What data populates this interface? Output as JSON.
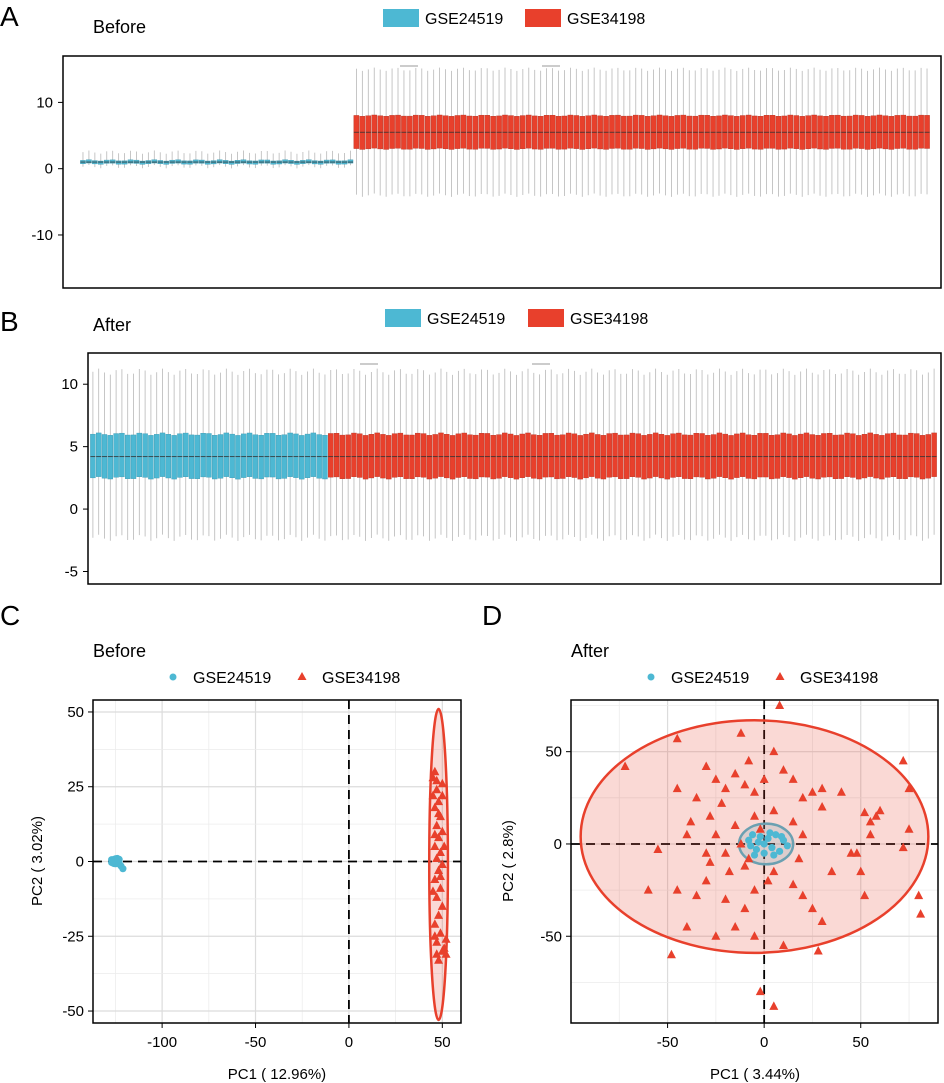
{
  "colors": {
    "GSE24519": "#4db8d3",
    "GSE34198": "#e8402c",
    "GSE24519_dark": "#3a97b0",
    "GSE34198_dark": "#b5301f"
  },
  "chart_data": [
    {
      "panel": "A",
      "title": "Before",
      "type": "boxplot",
      "legend": [
        "GSE24519",
        "GSE34198"
      ],
      "legend_position": "top",
      "ylim": [
        -18,
        17
      ],
      "yticks": [
        "10",
        "0",
        "-10"
      ],
      "series": [
        {
          "name": "GSE24519",
          "samples": 46,
          "median": 1.0,
          "q1": 0.75,
          "q3": 1.25,
          "whisker_low": 0.3,
          "whisker_high": 2.5
        },
        {
          "name": "GSE34198",
          "samples": 97,
          "median": 5.5,
          "q1": 3.0,
          "q3": 8.0,
          "whisker_low": -4.0,
          "whisker_high": 15.0
        }
      ]
    },
    {
      "panel": "B",
      "title": "After",
      "type": "boxplot",
      "legend": [
        "GSE24519",
        "GSE34198"
      ],
      "legend_position": "top",
      "ylim": [
        -6,
        12.5
      ],
      "yticks": [
        "10",
        "5",
        "0",
        "-5"
      ],
      "series": [
        {
          "name": "GSE24519",
          "samples": 41,
          "median": 4.2,
          "q1": 2.5,
          "q3": 6.0,
          "whisker_low": -2.3,
          "whisker_high": 11.0
        },
        {
          "name": "GSE34198",
          "samples": 105,
          "median": 4.2,
          "q1": 2.5,
          "q3": 6.0,
          "whisker_low": -2.3,
          "whisker_high": 11.0
        }
      ]
    },
    {
      "panel": "C",
      "title": "Before",
      "type": "scatter",
      "legend": [
        "GSE24519",
        "GSE34198"
      ],
      "legend_position": "top",
      "xlabel": "PC1 ( 12.96%)",
      "ylabel": "PC2 ( 3.02%)",
      "xlim": [
        -137,
        60
      ],
      "ylim": [
        -54,
        54
      ],
      "xticks": [
        "-100",
        "-50",
        "0",
        "50"
      ],
      "yticks": [
        "50",
        "25",
        "0",
        "-25",
        "-50"
      ],
      "series": [
        {
          "name": "GSE24519",
          "marker": "circle",
          "points": [
            [
              -127,
              0.6
            ],
            [
              -126,
              0.2
            ],
            [
              -125,
              0.9
            ],
            [
              -124,
              1.0
            ],
            [
              -125,
              -0.5
            ],
            [
              -123,
              -0.6
            ],
            [
              -122,
              -1.5
            ],
            [
              -121,
              -2.4
            ],
            [
              -126,
              0.0
            ],
            [
              -124,
              0.3
            ],
            [
              -123,
              0.7
            ],
            [
              -127,
              -0.3
            ]
          ],
          "ellipse": {
            "cx": -125,
            "cy": 0,
            "rx": 3,
            "ry": 1.5
          }
        },
        {
          "name": "GSE34198",
          "marker": "triangle",
          "points": [
            [
              46,
              30
            ],
            [
              47,
              27
            ],
            [
              45,
              22
            ],
            [
              48,
              20
            ],
            [
              46,
              18
            ],
            [
              49,
              15
            ],
            [
              47,
              12
            ],
            [
              50,
              10
            ],
            [
              48,
              8
            ],
            [
              46,
              5
            ],
            [
              49,
              3
            ],
            [
              47,
              1
            ],
            [
              50,
              -1
            ],
            [
              48,
              -3
            ],
            [
              46,
              -6
            ],
            [
              49,
              -9
            ],
            [
              47,
              -12
            ],
            [
              50,
              -15
            ],
            [
              48,
              -18
            ],
            [
              46,
              -21
            ],
            [
              49,
              -24
            ],
            [
              47,
              -27
            ],
            [
              50,
              -30
            ],
            [
              48,
              -33
            ],
            [
              51,
              -29
            ],
            [
              46,
              -25
            ],
            [
              52,
              -26
            ],
            [
              45,
              -10
            ],
            [
              51,
              5
            ],
            [
              47,
              24
            ],
            [
              48,
              16
            ],
            [
              50,
              22
            ],
            [
              46,
              9
            ],
            [
              49,
              -5
            ],
            [
              52,
              -31
            ],
            [
              47,
              -31
            ],
            [
              50,
              26
            ],
            [
              45,
              28
            ]
          ],
          "ellipse": {
            "cx": 48,
            "cy": -1,
            "rx": 5,
            "ry": 52
          }
        }
      ]
    },
    {
      "panel": "D",
      "title": "After",
      "type": "scatter",
      "legend": [
        "GSE24519",
        "GSE34198"
      ],
      "legend_position": "top",
      "xlabel": "PC1 ( 3.44%)",
      "ylabel": "PC2 ( 2.8%)",
      "xlim": [
        -100,
        90
      ],
      "ylim": [
        -97,
        78
      ],
      "xticks": [
        "-50",
        "0",
        "50"
      ],
      "yticks": [
        "50",
        "0",
        "-50"
      ],
      "series": [
        {
          "name": "GSE24519",
          "marker": "circle",
          "points": [
            [
              -8,
              2
            ],
            [
              -6,
              5
            ],
            [
              -4,
              -3
            ],
            [
              -2,
              4
            ],
            [
              0,
              -5
            ],
            [
              2,
              3
            ],
            [
              4,
              -2
            ],
            [
              6,
              5
            ],
            [
              8,
              -4
            ],
            [
              10,
              2
            ],
            [
              -5,
              -6
            ],
            [
              3,
              6
            ],
            [
              -7,
              -1
            ],
            [
              9,
              4
            ],
            [
              0,
              0
            ],
            [
              5,
              -6
            ],
            [
              -3,
              1
            ],
            [
              12,
              -1
            ]
          ],
          "ellipse": {
            "cx": 1,
            "cy": 0,
            "rx": 14,
            "ry": 11
          }
        },
        {
          "name": "GSE34198",
          "marker": "triangle",
          "points": [
            [
              -45,
              57
            ],
            [
              -72,
              42
            ],
            [
              -30,
              42
            ],
            [
              -45,
              30
            ],
            [
              -35,
              25
            ],
            [
              -25,
              35
            ],
            [
              -20,
              30
            ],
            [
              -15,
              38
            ],
            [
              -10,
              32
            ],
            [
              -5,
              28
            ],
            [
              -8,
              45
            ],
            [
              5,
              50
            ],
            [
              10,
              40
            ],
            [
              15,
              35
            ],
            [
              20,
              25
            ],
            [
              25,
              28
            ],
            [
              30,
              30
            ],
            [
              -28,
              15
            ],
            [
              -38,
              12
            ],
            [
              -25,
              5
            ],
            [
              -15,
              10
            ],
            [
              -5,
              15
            ],
            [
              5,
              18
            ],
            [
              15,
              12
            ],
            [
              -20,
              -5
            ],
            [
              -10,
              -12
            ],
            [
              -30,
              -20
            ],
            [
              -35,
              -28
            ],
            [
              -45,
              -25
            ],
            [
              -20,
              -30
            ],
            [
              -5,
              -25
            ],
            [
              5,
              -15
            ],
            [
              15,
              -22
            ],
            [
              20,
              -28
            ],
            [
              25,
              -35
            ],
            [
              30,
              -42
            ],
            [
              -15,
              -45
            ],
            [
              -25,
              -50
            ],
            [
              -40,
              -45
            ],
            [
              -5,
              -50
            ],
            [
              10,
              -55
            ],
            [
              28,
              -58
            ],
            [
              -48,
              -60
            ],
            [
              -60,
              -25
            ],
            [
              -55,
              -3
            ],
            [
              52,
              17
            ],
            [
              55,
              12
            ],
            [
              58,
              15
            ],
            [
              60,
              18
            ],
            [
              48,
              -5
            ],
            [
              50,
              -15
            ],
            [
              52,
              -28
            ],
            [
              40,
              28
            ],
            [
              30,
              20
            ],
            [
              20,
              5
            ],
            [
              -18,
              -15
            ],
            [
              -8,
              -8
            ],
            [
              -28,
              -10
            ],
            [
              72,
              45
            ],
            [
              75,
              30
            ],
            [
              80,
              -28
            ],
            [
              81,
              -38
            ],
            [
              75,
              8
            ],
            [
              72,
              -2
            ],
            [
              55,
              5
            ],
            [
              8,
              75
            ],
            [
              -2,
              -80
            ],
            [
              5,
              -88
            ],
            [
              -12,
              0
            ],
            [
              -2,
              8
            ],
            [
              2,
              -20
            ],
            [
              18,
              -8
            ],
            [
              -40,
              5
            ],
            [
              -12,
              60
            ],
            [
              -22,
              22
            ],
            [
              0,
              35
            ],
            [
              35,
              -15
            ],
            [
              45,
              -5
            ],
            [
              -30,
              -5
            ],
            [
              -10,
              -35
            ]
          ],
          "ellipse": {
            "cx": -5,
            "cy": 4,
            "rx": 90,
            "ry": 63
          }
        }
      ]
    }
  ]
}
